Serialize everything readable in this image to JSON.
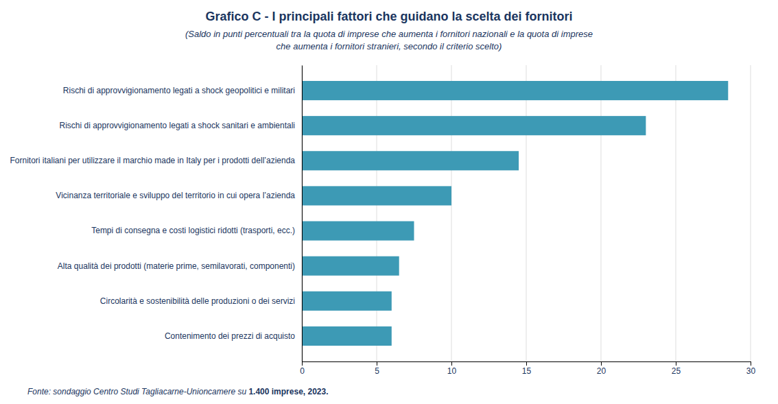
{
  "chart_data": {
    "type": "bar",
    "orientation": "horizontal",
    "title": "Grafico C - I principali fattori che guidano la scelta dei fornitori",
    "subtitle": [
      "(Saldo in punti percentuali tra la quota di imprese che aumenta i fornitori nazionali e la quota di imprese",
      "che aumenta i fornitori stranieri, secondo il criterio scelto)"
    ],
    "categories": [
      "Contenimento dei prezzi di acquisto",
      "Circolarità e sostenibilità delle produzioni o dei servizi",
      "Alta qualità dei prodotti (materie prime, semilavorati, componenti)",
      "Tempi di consegna e costi logistici ridotti (trasporti, ecc.)",
      "Vicinanza territoriale e sviluppo del territorio in cui opera l’azienda",
      "Fornitori italiani per utilizzare il marchio made in Italy per i prodotti dell’azienda",
      "Rischi di approvvigionamento legati a shock sanitari e ambientali",
      "Rischi di approvvigionamento legati a shock geopolitici e militari"
    ],
    "values": [
      6.0,
      6.0,
      6.5,
      7.5,
      10.0,
      14.5,
      23.0,
      28.5
    ],
    "color": "#3d9ab5",
    "xlim": [
      0,
      30
    ],
    "xticks": [
      0,
      5,
      10,
      15,
      20,
      25,
      30
    ],
    "grid": true,
    "annotations": [
      "Fonte: sondaggio Centro Studi Tagliacarne-Unioncamere su ",
      "1.400 imprese, 2023."
    ]
  }
}
